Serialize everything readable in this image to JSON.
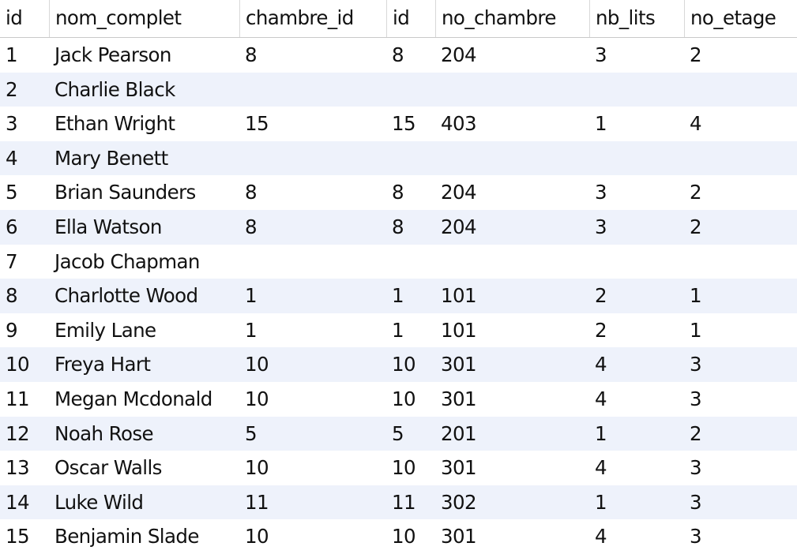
{
  "columns": [
    "id",
    "nom_complet",
    "chambre_id",
    "id",
    "no_chambre",
    "nb_lits",
    "no_etage"
  ],
  "null_label": "NULL",
  "rows": [
    [
      "1",
      "Jack Pearson",
      "8",
      "8",
      "204",
      "3",
      "2"
    ],
    [
      "2",
      "Charlie Black",
      null,
      null,
      null,
      null,
      null
    ],
    [
      "3",
      "Ethan Wright",
      "15",
      "15",
      "403",
      "1",
      "4"
    ],
    [
      "4",
      "Mary Benett",
      null,
      null,
      null,
      null,
      null
    ],
    [
      "5",
      "Brian Saunders",
      "8",
      "8",
      "204",
      "3",
      "2"
    ],
    [
      "6",
      "Ella Watson",
      "8",
      "8",
      "204",
      "3",
      "2"
    ],
    [
      "7",
      "Jacob Chapman",
      null,
      null,
      null,
      null,
      null
    ],
    [
      "8",
      "Charlotte Wood",
      "1",
      "1",
      "101",
      "2",
      "1"
    ],
    [
      "9",
      "Emily Lane",
      "1",
      "1",
      "101",
      "2",
      "1"
    ],
    [
      "10",
      "Freya Hart",
      "10",
      "10",
      "301",
      "4",
      "3"
    ],
    [
      "11",
      "Megan Mcdonald",
      "10",
      "10",
      "301",
      "4",
      "3"
    ],
    [
      "12",
      "Noah Rose",
      "5",
      "5",
      "201",
      "1",
      "2"
    ],
    [
      "13",
      "Oscar Walls",
      "10",
      "10",
      "301",
      "4",
      "3"
    ],
    [
      "14",
      "Luke Wild",
      "11",
      "11",
      "302",
      "1",
      "3"
    ],
    [
      "15",
      "Benjamin Slade",
      "10",
      "10",
      "301",
      "4",
      "3"
    ]
  ],
  "colors": {
    "row_alt_background": "#eef2fb",
    "null_badge_background": "#8a8a8a",
    "text": "#111111"
  }
}
